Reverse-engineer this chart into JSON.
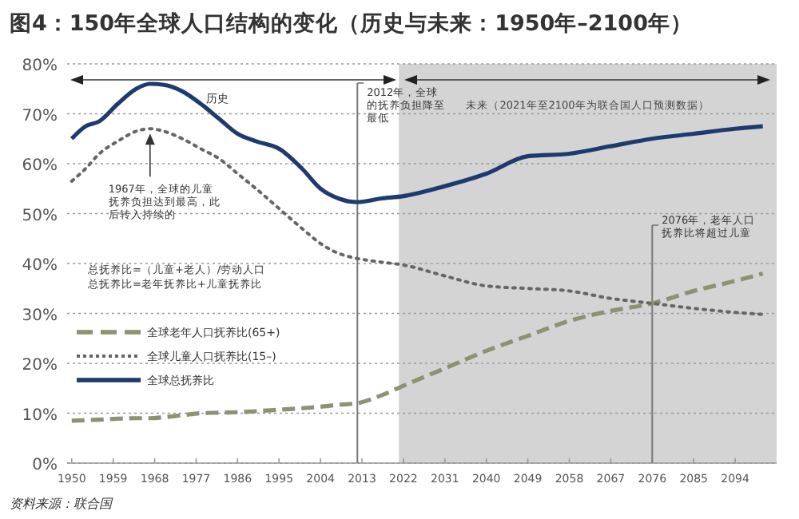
{
  "chart_data": {
    "type": "line",
    "title": "图4：150年全球人口结构的变化（历史与未来：1950年–2100年）",
    "x": [
      1950,
      1953,
      1956,
      1960,
      1964,
      1967,
      1970,
      1974,
      1978,
      1982,
      1986,
      1990,
      1995,
      2000,
      2004,
      2008,
      2012,
      2017,
      2022,
      2031,
      2040,
      2049,
      2058,
      2067,
      2076,
      2085,
      2094,
      2100
    ],
    "series": [
      {
        "name": "全球老年人口抚养比(65+)",
        "color": "#8c9273",
        "line_style": "dashed",
        "values": [
          8.5,
          8.6,
          8.7,
          8.9,
          9,
          9,
          9.2,
          9.6,
          10,
          10.1,
          10.2,
          10.4,
          10.7,
          11,
          11.3,
          11.7,
          12,
          13.5,
          15.5,
          19,
          22.5,
          25.5,
          28.5,
          30.5,
          32,
          34.5,
          36.5,
          38
        ]
      },
      {
        "name": "全球儿童人口抚养比(15–)",
        "color": "#666666",
        "line_style": "dotted",
        "values": [
          56.5,
          59,
          62,
          64.5,
          66.5,
          67,
          66.5,
          65,
          63,
          61,
          58,
          55,
          51,
          47,
          44,
          42,
          41,
          40.3,
          39.7,
          37.5,
          35.5,
          35,
          34.5,
          33,
          32,
          31,
          30.2,
          29.8
        ]
      },
      {
        "name": "全球总抚养比",
        "color": "#1f3a6e",
        "line_style": "solid",
        "values": [
          65,
          67.5,
          68.5,
          72,
          75,
          76,
          75.8,
          74.5,
          72,
          69,
          66,
          64.5,
          63,
          59,
          55,
          53,
          52.3,
          53,
          53.5,
          55.5,
          58,
          61.5,
          62,
          63.5,
          65,
          66,
          67,
          67.5
        ]
      }
    ],
    "xlim": [
      1949,
      2103
    ],
    "xticks": [
      1950,
      1959,
      1968,
      1977,
      1986,
      1995,
      2004,
      2013,
      2022,
      2031,
      2040,
      2049,
      2058,
      2067,
      2076,
      2085,
      2094
    ],
    "ylim": [
      0,
      80
    ],
    "yticks": [
      {
        "value": 0,
        "label": "0%"
      },
      {
        "value": 10,
        "label": "10%"
      },
      {
        "value": 20,
        "label": "20%"
      },
      {
        "value": 30,
        "label": "30%"
      },
      {
        "value": 40,
        "label": "40%"
      },
      {
        "value": 50,
        "label": "50%"
      },
      {
        "value": 60,
        "label": "60%"
      },
      {
        "value": 70,
        "label": "70%"
      },
      {
        "value": 80,
        "label": "80%"
      }
    ],
    "grid": "y",
    "legend": "left",
    "bands": [
      {
        "axis": "x",
        "from": 2021,
        "to": 2103,
        "color": "#d4d4d4",
        "label": "未来（2021年至2100年为联合国人口预测数据）"
      }
    ],
    "ref_lines": [
      {
        "axis": "x",
        "value": 2012,
        "label": "2012年，全球的抚养负担降至最低",
        "color": "#777777"
      },
      {
        "axis": "x",
        "value": 2076,
        "label": "2076年，老年人口抚养比将超过儿童",
        "color": "#777777"
      }
    ],
    "annotations": [
      "历史",
      {
        "text": "1967年，全球的儿童抚养负担达到最高，此后转入持续的",
        "x": 1967,
        "y": 67
      },
      "总抚养比=（儿童+老人）/劳动人口",
      "总抚养比=老年抚养比+儿童抚养比",
      "资料来源：联合国"
    ]
  }
}
